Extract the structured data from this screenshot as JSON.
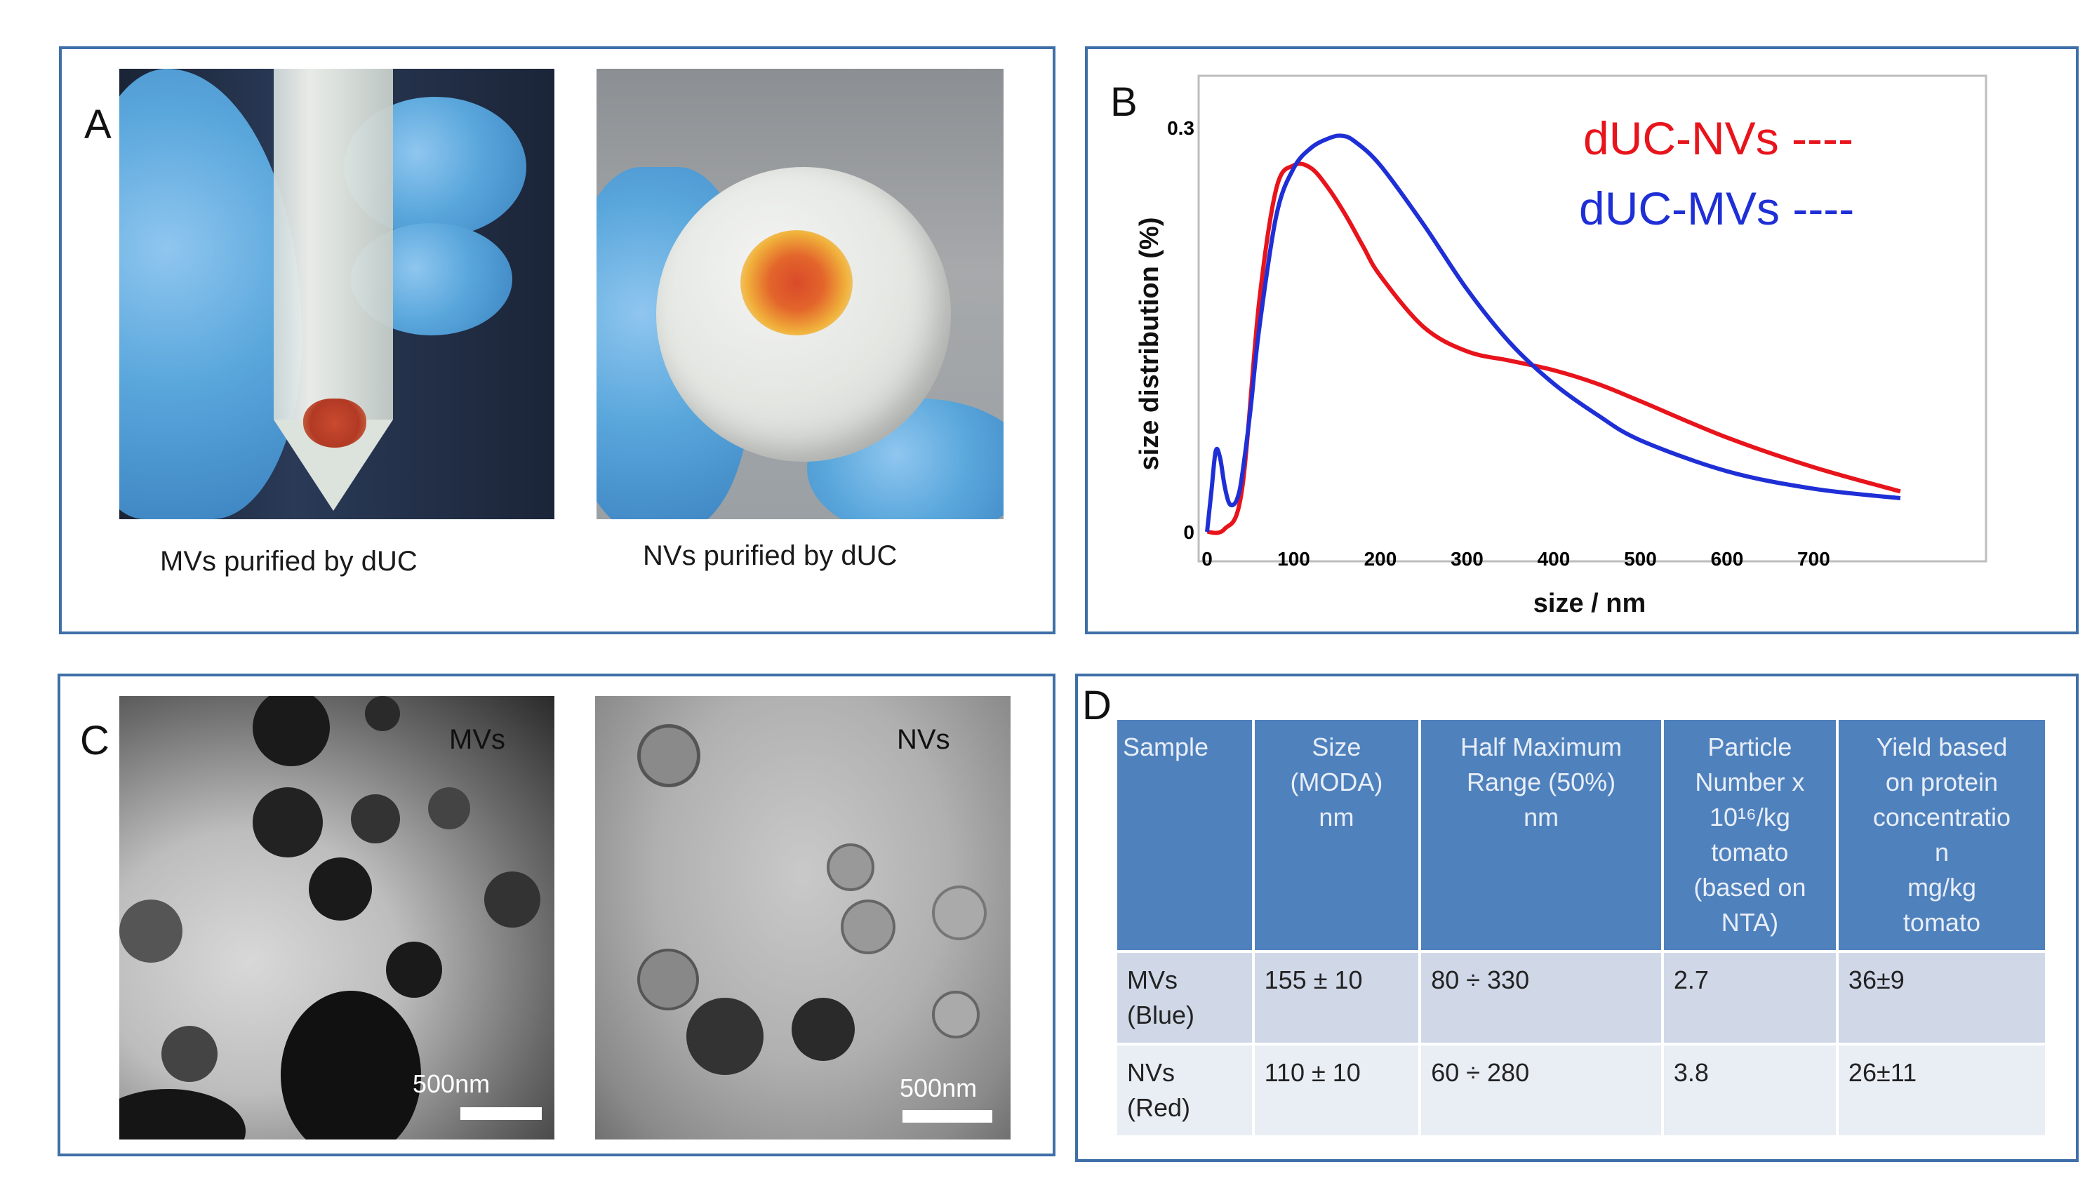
{
  "panels": {
    "a": {
      "letter": "A",
      "caption_left": "MVs purified by dUC",
      "caption_right": "NVs purified by dUC"
    },
    "b": {
      "letter": "B"
    },
    "c": {
      "letter": "C",
      "label_left": "MVs",
      "label_right": "NVs",
      "scale_left": "500nm",
      "scale_right": "500nm"
    },
    "d": {
      "letter": "D"
    }
  },
  "chart_data": {
    "type": "line",
    "xlabel": "size / nm",
    "ylabel": "size distribution   (%)",
    "xlim": [
      0,
      800
    ],
    "ylim": [
      0,
      0.3
    ],
    "x_ticks": [
      "0",
      "100",
      "200",
      "300",
      "400",
      "500",
      "600",
      "700"
    ],
    "y_ticks": [
      "0",
      "0.3"
    ],
    "grid": false,
    "legend_placement": "top-right",
    "series": [
      {
        "name": "dUC-NVs ----",
        "color": "#e8141c",
        "x": [
          0,
          20,
          40,
          60,
          80,
          100,
          120,
          140,
          160,
          180,
          200,
          250,
          300,
          350,
          400,
          450,
          500,
          600,
          700,
          800
        ],
        "y": [
          0.0,
          0.002,
          0.03,
          0.17,
          0.255,
          0.272,
          0.27,
          0.255,
          0.235,
          0.212,
          0.19,
          0.152,
          0.134,
          0.127,
          0.12,
          0.11,
          0.097,
          0.07,
          0.048,
          0.03
        ]
      },
      {
        "name": "dUC-MVs ----",
        "color": "#1f2fd6",
        "x": [
          0,
          5,
          10,
          15,
          20,
          25,
          30,
          35,
          40,
          50,
          60,
          80,
          100,
          120,
          140,
          155,
          170,
          200,
          250,
          300,
          350,
          400,
          450,
          500,
          600,
          700,
          800
        ],
        "y": [
          0.0,
          0.03,
          0.06,
          0.055,
          0.035,
          0.022,
          0.02,
          0.025,
          0.04,
          0.09,
          0.15,
          0.235,
          0.27,
          0.285,
          0.292,
          0.294,
          0.29,
          0.272,
          0.228,
          0.18,
          0.14,
          0.11,
          0.087,
          0.068,
          0.045,
          0.032,
          0.025
        ]
      }
    ]
  },
  "table": {
    "headers": [
      [
        "Sample"
      ],
      [
        "Size",
        "(MODA)",
        "nm"
      ],
      [
        "Half Maximum",
        "Range (50%)",
        "nm"
      ],
      [
        "Particle",
        "Number x",
        "10¹⁶/kg",
        "tomato",
        "(based on",
        "NTA)"
      ],
      [
        "Yield based",
        "on protein",
        "concentratio",
        "n",
        "mg/kg",
        "tomato"
      ]
    ],
    "rows": [
      {
        "sample": [
          "MVs",
          "(Blue)"
        ],
        "size": "155 ± 10",
        "range": "80 ÷ 330",
        "particles": "2.7",
        "yield": "36±9"
      },
      {
        "sample": [
          "NVs",
          "(Red)"
        ],
        "size": "110 ± 10",
        "range": "60 ÷ 280",
        "particles": "3.8",
        "yield": "26±11"
      }
    ]
  }
}
